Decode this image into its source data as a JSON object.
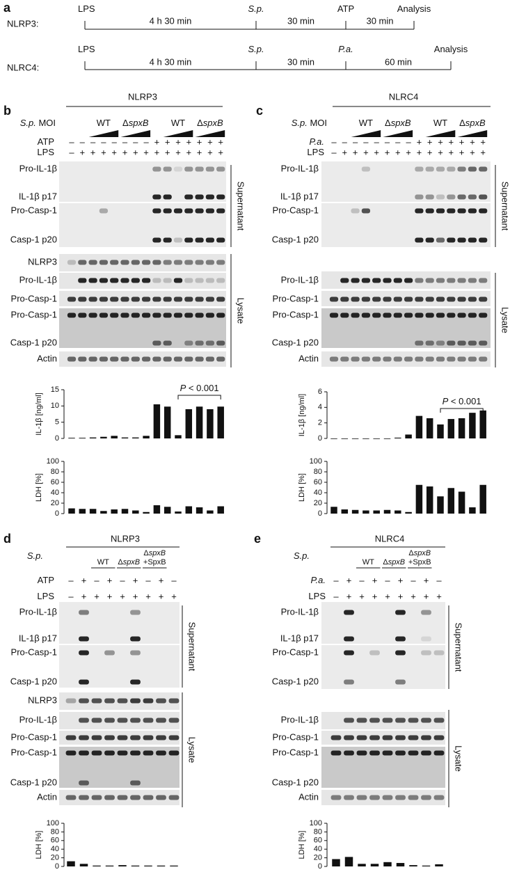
{
  "panel_a": {
    "letter": "a",
    "rows": [
      {
        "label": "NLRP3:",
        "events": [
          [
            {
              "t": "LPS"
            }
          ],
          [
            {
              "t": "S.p.",
              "i": true
            }
          ],
          [
            {
              "t": "ATP"
            }
          ],
          [
            {
              "t": "Analysis"
            }
          ]
        ],
        "durations": [
          "4 h 30 min",
          "30 min",
          "30 min"
        ]
      },
      {
        "label": "NLRC4:",
        "events": [
          [
            {
              "t": "LPS"
            }
          ],
          [
            {
              "t": "S.p.",
              "i": true
            }
          ],
          [
            {
              "t": "P.a.",
              "i": true
            }
          ],
          [
            {
              "t": "Analysis"
            }
          ]
        ],
        "durations": [
          "4 h 30 min",
          "30 min",
          "60 min"
        ]
      }
    ]
  },
  "panels": [
    {
      "letter": "b",
      "title": "NLRP3",
      "factor": [
        {
          "t": "S.p.",
          "i": true
        },
        {
          "t": " MOI"
        }
      ],
      "groups": [
        [
          [
            {
              "t": "WT"
            }
          ]
        ],
        [
          [
            {
              "t": "Δ"
            },
            {
              "t": "spxB",
              "i": true
            }
          ]
        ],
        [
          [
            {
              "t": "WT"
            }
          ]
        ],
        [
          [
            {
              "t": "Δ"
            },
            {
              "t": "spxB",
              "i": true
            }
          ]
        ]
      ],
      "rows": [
        {
          "label": [
            {
              "t": "ATP"
            }
          ],
          "symbols": [
            "–",
            "–",
            "–",
            "–",
            "–",
            "–",
            "–",
            "–",
            "+",
            "+",
            "+",
            "+",
            "+",
            "+",
            "+"
          ]
        },
        {
          "label": [
            {
              "t": "LPS"
            }
          ],
          "symbols": [
            "–",
            "+",
            "+",
            "+",
            "+",
            "+",
            "+",
            "+",
            "+",
            "+",
            "+",
            "+",
            "+",
            "+",
            "+"
          ]
        }
      ],
      "supernatant": {
        "label": "Supernatant",
        "blots": [
          "Pro-IL-1β",
          "IL-1β p17",
          "Pro-Casp-1",
          "Casp-1 p20"
        ]
      },
      "lysate": {
        "label": "Lysate",
        "blots": [
          "NLRP3",
          "Pro-IL-1β",
          "Pro-Casp-1",
          "Pro-Casp-1",
          "Casp-1 p20",
          "Actin"
        ]
      },
      "charts": [
        {
          "axis_label": "IL-1β [ng/ml]",
          "ylim": [
            0,
            15
          ],
          "yticks": [
            0,
            5,
            10,
            15
          ],
          "color": "#111111",
          "values": [
            0.2,
            0.2,
            0.3,
            0.5,
            0.8,
            0.3,
            0.3,
            0.8,
            10.5,
            9.8,
            1.0,
            9.0,
            9.8,
            9.0,
            9.8
          ],
          "annotation": [
            {
              "t": "P",
              "i": true
            },
            {
              "t": " < 0.001"
            }
          ]
        },
        {
          "axis_label": "LDH [%]",
          "ylim": [
            0,
            100
          ],
          "yticks": [
            0,
            20,
            40,
            60,
            80,
            100
          ],
          "color": "#111111",
          "values": [
            10,
            9,
            9,
            5,
            8,
            9,
            6,
            3,
            16,
            13,
            4,
            14,
            12,
            6,
            14
          ]
        }
      ]
    },
    {
      "letter": "c",
      "title": "NLRC4",
      "factor": [
        {
          "t": "S.p.",
          "i": true
        },
        {
          "t": " MOI"
        }
      ],
      "groups": [
        [
          [
            {
              "t": "WT"
            }
          ]
        ],
        [
          [
            {
              "t": "Δ"
            },
            {
              "t": "spxB",
              "i": true
            }
          ]
        ],
        [
          [
            {
              "t": "WT"
            }
          ]
        ],
        [
          [
            {
              "t": "Δ"
            },
            {
              "t": "spxB",
              "i": true
            }
          ]
        ]
      ],
      "rows": [
        {
          "label": [
            {
              "t": "P.a.",
              "i": true
            }
          ],
          "symbols": [
            "–",
            "–",
            "–",
            "–",
            "–",
            "–",
            "–",
            "–",
            "+",
            "+",
            "+",
            "+",
            "+",
            "+",
            "+"
          ]
        },
        {
          "label": [
            {
              "t": "LPS"
            }
          ],
          "symbols": [
            "–",
            "+",
            "+",
            "+",
            "+",
            "+",
            "+",
            "+",
            "+",
            "+",
            "+",
            "+",
            "+",
            "+",
            "+"
          ]
        }
      ],
      "supernatant": {
        "label": "Supernatant",
        "blots": [
          "Pro-IL-1β",
          "IL-1β p17",
          "Pro-Casp-1",
          "Casp-1 p20"
        ]
      },
      "lysate": {
        "label": "Lysate",
        "blots": [
          "Pro-IL-1β",
          "Pro-Casp-1",
          "Pro-Casp-1",
          "Casp-1 p20",
          "Actin"
        ]
      },
      "charts": [
        {
          "axis_label": "IL-1β [ng/ml]",
          "ylim": [
            0,
            6
          ],
          "yticks": [
            0,
            2,
            4,
            6
          ],
          "color": "#111111",
          "values": [
            0,
            0,
            0,
            0,
            0,
            0,
            0.1,
            0.5,
            2.9,
            2.6,
            1.8,
            2.5,
            2.6,
            3.3,
            3.6
          ],
          "annotation": [
            {
              "t": "P",
              "i": true
            },
            {
              "t": " < 0.001"
            }
          ]
        },
        {
          "axis_label": "LDH [%]",
          "ylim": [
            0,
            100
          ],
          "yticks": [
            0,
            20,
            40,
            60,
            80,
            100
          ],
          "color": "#111111",
          "values": [
            13,
            8,
            7,
            6,
            6,
            7,
            6,
            3,
            55,
            52,
            33,
            49,
            42,
            12,
            55
          ]
        }
      ]
    },
    {
      "letter": "d",
      "title": "NLRP3",
      "factor": [
        {
          "t": "S.p.",
          "i": true
        }
      ],
      "groups": [
        [
          [
            {
              "t": "WT"
            }
          ]
        ],
        [
          [
            {
              "t": "Δ"
            },
            {
              "t": "spxB",
              "i": true
            }
          ]
        ],
        [
          [
            {
              "t": "Δ"
            },
            {
              "t": "spxB",
              "i": true
            }
          ],
          [
            {
              "t": "+SpxB"
            }
          ]
        ]
      ],
      "rows": [
        {
          "label": [
            {
              "t": "ATP"
            }
          ],
          "symbols": [
            "–",
            "+",
            "–",
            "+",
            "–",
            "+",
            "–",
            "+",
            "–"
          ]
        },
        {
          "label": [
            {
              "t": "LPS"
            }
          ],
          "symbols": [
            "–",
            "+",
            "+",
            "+",
            "+",
            "+",
            "+",
            "+",
            "+"
          ]
        }
      ],
      "supernatant": {
        "label": "Supernatant",
        "blots": [
          "Pro-IL-1β",
          "IL-1β p17",
          "Pro-Casp-1",
          "Casp-1 p20"
        ]
      },
      "lysate": {
        "label": "Lysate",
        "blots": [
          "NLRP3",
          "Pro-IL-1β",
          "Pro-Casp-1",
          "Pro-Casp-1",
          "Casp-1 p20",
          "Actin"
        ]
      },
      "charts": [
        {
          "axis_label": "LDH [%]",
          "ylim": [
            0,
            100
          ],
          "yticks": [
            0,
            20,
            40,
            60,
            80,
            100
          ],
          "color": "#111111",
          "values": [
            12,
            6,
            2,
            2,
            3,
            2,
            2,
            2,
            2
          ]
        }
      ]
    },
    {
      "letter": "e",
      "title": "NLRC4",
      "factor": [
        {
          "t": "S.p.",
          "i": true
        }
      ],
      "groups": [
        [
          [
            {
              "t": "WT"
            }
          ]
        ],
        [
          [
            {
              "t": "Δ"
            },
            {
              "t": "spxB",
              "i": true
            }
          ]
        ],
        [
          [
            {
              "t": "Δ"
            },
            {
              "t": "spxB",
              "i": true
            }
          ],
          [
            {
              "t": "+SpxB"
            }
          ]
        ]
      ],
      "rows": [
        {
          "label": [
            {
              "t": "P.a.",
              "i": true
            }
          ],
          "symbols": [
            "–",
            "+",
            "–",
            "+",
            "–",
            "+",
            "–",
            "+",
            "–"
          ]
        },
        {
          "label": [
            {
              "t": "LPS"
            }
          ],
          "symbols": [
            "–",
            "+",
            "+",
            "+",
            "+",
            "+",
            "+",
            "+",
            "+"
          ]
        }
      ],
      "supernatant": {
        "label": "Supernatant",
        "blots": [
          "Pro-IL-1β",
          "IL-1β p17",
          "Pro-Casp-1",
          "Casp-1 p20"
        ]
      },
      "lysate": {
        "label": "Lysate",
        "blots": [
          "Pro-IL-1β",
          "Pro-Casp-1",
          "Pro-Casp-1",
          "Casp-1 p20",
          "Actin"
        ]
      },
      "charts": [
        {
          "axis_label": "LDH [%]",
          "ylim": [
            0,
            100
          ],
          "yticks": [
            0,
            20,
            40,
            60,
            80,
            100
          ],
          "color": "#111111",
          "values": [
            17,
            22,
            6,
            6,
            10,
            8,
            3,
            2,
            5
          ]
        }
      ]
    }
  ]
}
